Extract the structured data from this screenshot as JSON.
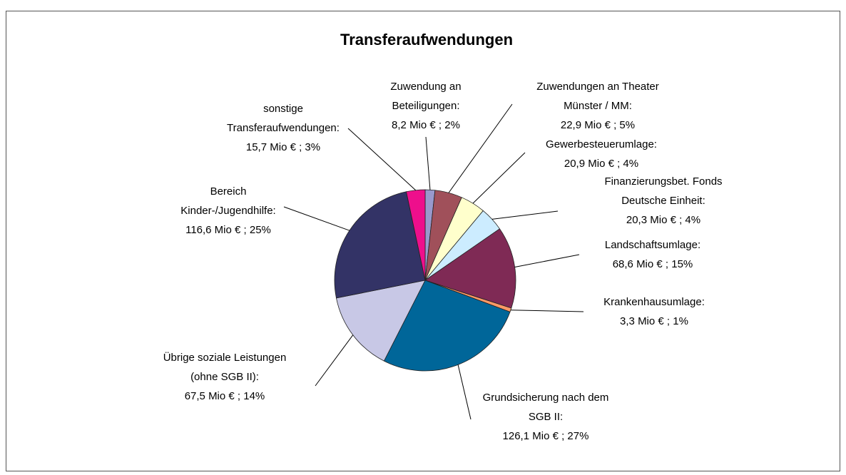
{
  "chart_data": {
    "type": "pie",
    "title": "Transferaufwendungen",
    "categories": [
      "Zuwendung an Beteiligungen:",
      "Zuwendungen an Theater Münster / MM:",
      "Gewerbesteuerumlage:",
      "Finanzierungsbet. Fonds Deutsche Einheit:",
      "Landschaftsumlage:",
      "Krankenhausumlage:",
      "Grundsicherung nach dem SGB II:",
      "Übrige soziale Leistungen (ohne SGB II):",
      "Bereich Kinder-/Jugendhilfe:",
      "sonstige Transferaufwendungen:"
    ],
    "values": [
      8.2,
      22.9,
      20.9,
      20.3,
      68.6,
      3.3,
      126.1,
      67.5,
      116.6,
      15.7
    ],
    "value_labels": [
      "8,2 Mio € ; 2%",
      "22,9 Mio € ; 5%",
      "20,9 Mio € ; 4%",
      "20,3 Mio € ; 4%",
      "68,6 Mio € ; 15%",
      "3,3 Mio € ; 1%",
      "126,1 Mio € ; 27%",
      "67,5 Mio € ; 14%",
      "116,6 Mio € ; 25%",
      "15,7 Mio € ; 3%"
    ],
    "colors": [
      "#9999cc",
      "#a0505a",
      "#ffffcc",
      "#ccecff",
      "#7f2a55",
      "#ff9966",
      "#006699",
      "#c8c8e6",
      "#333366",
      "#ee0f8c"
    ]
  }
}
